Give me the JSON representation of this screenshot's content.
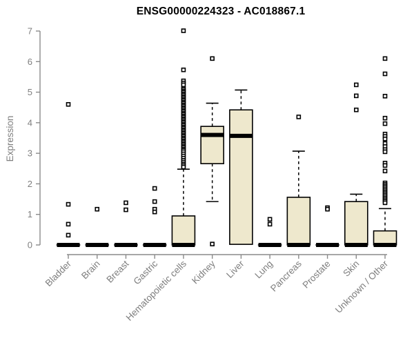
{
  "chart_data": {
    "type": "boxplot",
    "title": "ENSG00000224323 - AC018867.1",
    "ylabel": "Expression",
    "xlabel": "",
    "ylim": [
      0,
      7
    ],
    "yticks": [
      0,
      1,
      2,
      3,
      4,
      5,
      6,
      7
    ],
    "grid": false,
    "legend": "none",
    "colors": {
      "box_fill": "#EEE8CD",
      "box_border": "#000000",
      "median": "#000000",
      "axis_line": "#8a8a8a",
      "axis_text": "#7e7e7e",
      "title_text": "#000000",
      "outlier_stroke": "#000000",
      "background": "#ffffff"
    },
    "categories": [
      "Bladder",
      "Brain",
      "Breast",
      "Gastric",
      "Hematopoietic cells",
      "Kidney",
      "Liver",
      "Lung",
      "Pancreas",
      "Prostate",
      "Skin",
      "Unknown / Other"
    ],
    "boxes": [
      {
        "category": "Bladder",
        "slug": "bladder",
        "q1": 0,
        "median": 0,
        "q3": 0,
        "whisker_low": 0,
        "whisker_high": 0,
        "outliers": [
          4.6,
          1.33,
          0.68,
          0.32
        ]
      },
      {
        "category": "Brain",
        "slug": "brain",
        "q1": 0,
        "median": 0,
        "q3": 0,
        "whisker_low": 0,
        "whisker_high": 0,
        "outliers": [
          1.17
        ]
      },
      {
        "category": "Breast",
        "slug": "breast",
        "q1": 0,
        "median": 0,
        "q3": 0,
        "whisker_low": 0,
        "whisker_high": 0,
        "outliers": [
          1.38,
          1.15
        ]
      },
      {
        "category": "Gastric",
        "slug": "gastric",
        "q1": 0,
        "median": 0,
        "q3": 0,
        "whisker_low": 0,
        "whisker_high": 0,
        "outliers": [
          1.85,
          1.42,
          1.17,
          1.08
        ]
      },
      {
        "category": "Hematopoietic cells",
        "slug": "hematopoietic-cells",
        "q1": 0,
        "median": 0,
        "q3": 0.95,
        "whisker_low": 0,
        "whisker_high": 2.48,
        "outliers": [
          7.01,
          5.73,
          5.37,
          5.3,
          5.24,
          5.12,
          5.08,
          5.03,
          4.99,
          4.94,
          4.9,
          4.85,
          4.81,
          4.76,
          4.72,
          4.67,
          4.63,
          4.58,
          4.54,
          4.49,
          4.45,
          4.4,
          4.36,
          4.31,
          4.27,
          4.22,
          4.18,
          4.13,
          4.09,
          4.04,
          4.0,
          3.95,
          3.91,
          3.86,
          3.82,
          3.77,
          3.73,
          3.68,
          3.64,
          3.59,
          3.55,
          3.5,
          3.46,
          3.41,
          3.37,
          3.32,
          3.28,
          3.23,
          3.19,
          3.14,
          3.1,
          3.05,
          2.98,
          2.91,
          2.84,
          2.77,
          2.71,
          2.65,
          2.6,
          2.55
        ]
      },
      {
        "category": "Kidney",
        "slug": "kidney",
        "q1": 2.66,
        "median": 3.6,
        "q3": 3.88,
        "whisker_low": 1.42,
        "whisker_high": 4.64,
        "outliers": [
          6.1,
          0.03
        ]
      },
      {
        "category": "Liver",
        "slug": "liver",
        "q1": 0.02,
        "median": 3.57,
        "q3": 4.42,
        "whisker_low": 0.02,
        "whisker_high": 5.07,
        "outliers": []
      },
      {
        "category": "Lung",
        "slug": "lung",
        "q1": 0,
        "median": 0,
        "q3": 0,
        "whisker_low": 0,
        "whisker_high": 0,
        "outliers": [
          0.84,
          0.68
        ]
      },
      {
        "category": "Pancreas",
        "slug": "pancreas",
        "q1": 0,
        "median": 0,
        "q3": 1.56,
        "whisker_low": 0,
        "whisker_high": 3.07,
        "outliers": [
          4.19
        ]
      },
      {
        "category": "Prostate",
        "slug": "prostate",
        "q1": 0,
        "median": 0,
        "q3": 0,
        "whisker_low": 0,
        "whisker_high": 0,
        "outliers": [
          1.22,
          1.17
        ]
      },
      {
        "category": "Skin",
        "slug": "skin",
        "q1": 0,
        "median": 0,
        "q3": 1.42,
        "whisker_low": 0,
        "whisker_high": 1.66,
        "outliers": [
          5.24,
          4.88,
          4.42
        ]
      },
      {
        "category": "Unknown / Other",
        "slug": "unknown-other",
        "q1": 0,
        "median": 0,
        "q3": 0.46,
        "whisker_low": 0,
        "whisker_high": 1.19,
        "outliers": [
          6.1,
          5.6,
          4.87,
          4.15,
          3.97,
          3.63,
          3.55,
          3.47,
          3.32,
          3.22,
          3.12,
          3.05,
          2.68,
          2.6,
          2.42,
          2.03,
          1.98,
          1.93,
          1.88,
          1.83,
          1.78,
          1.73,
          1.68,
          1.63,
          1.58,
          1.53,
          1.48,
          1.43,
          1.38
        ]
      }
    ]
  }
}
